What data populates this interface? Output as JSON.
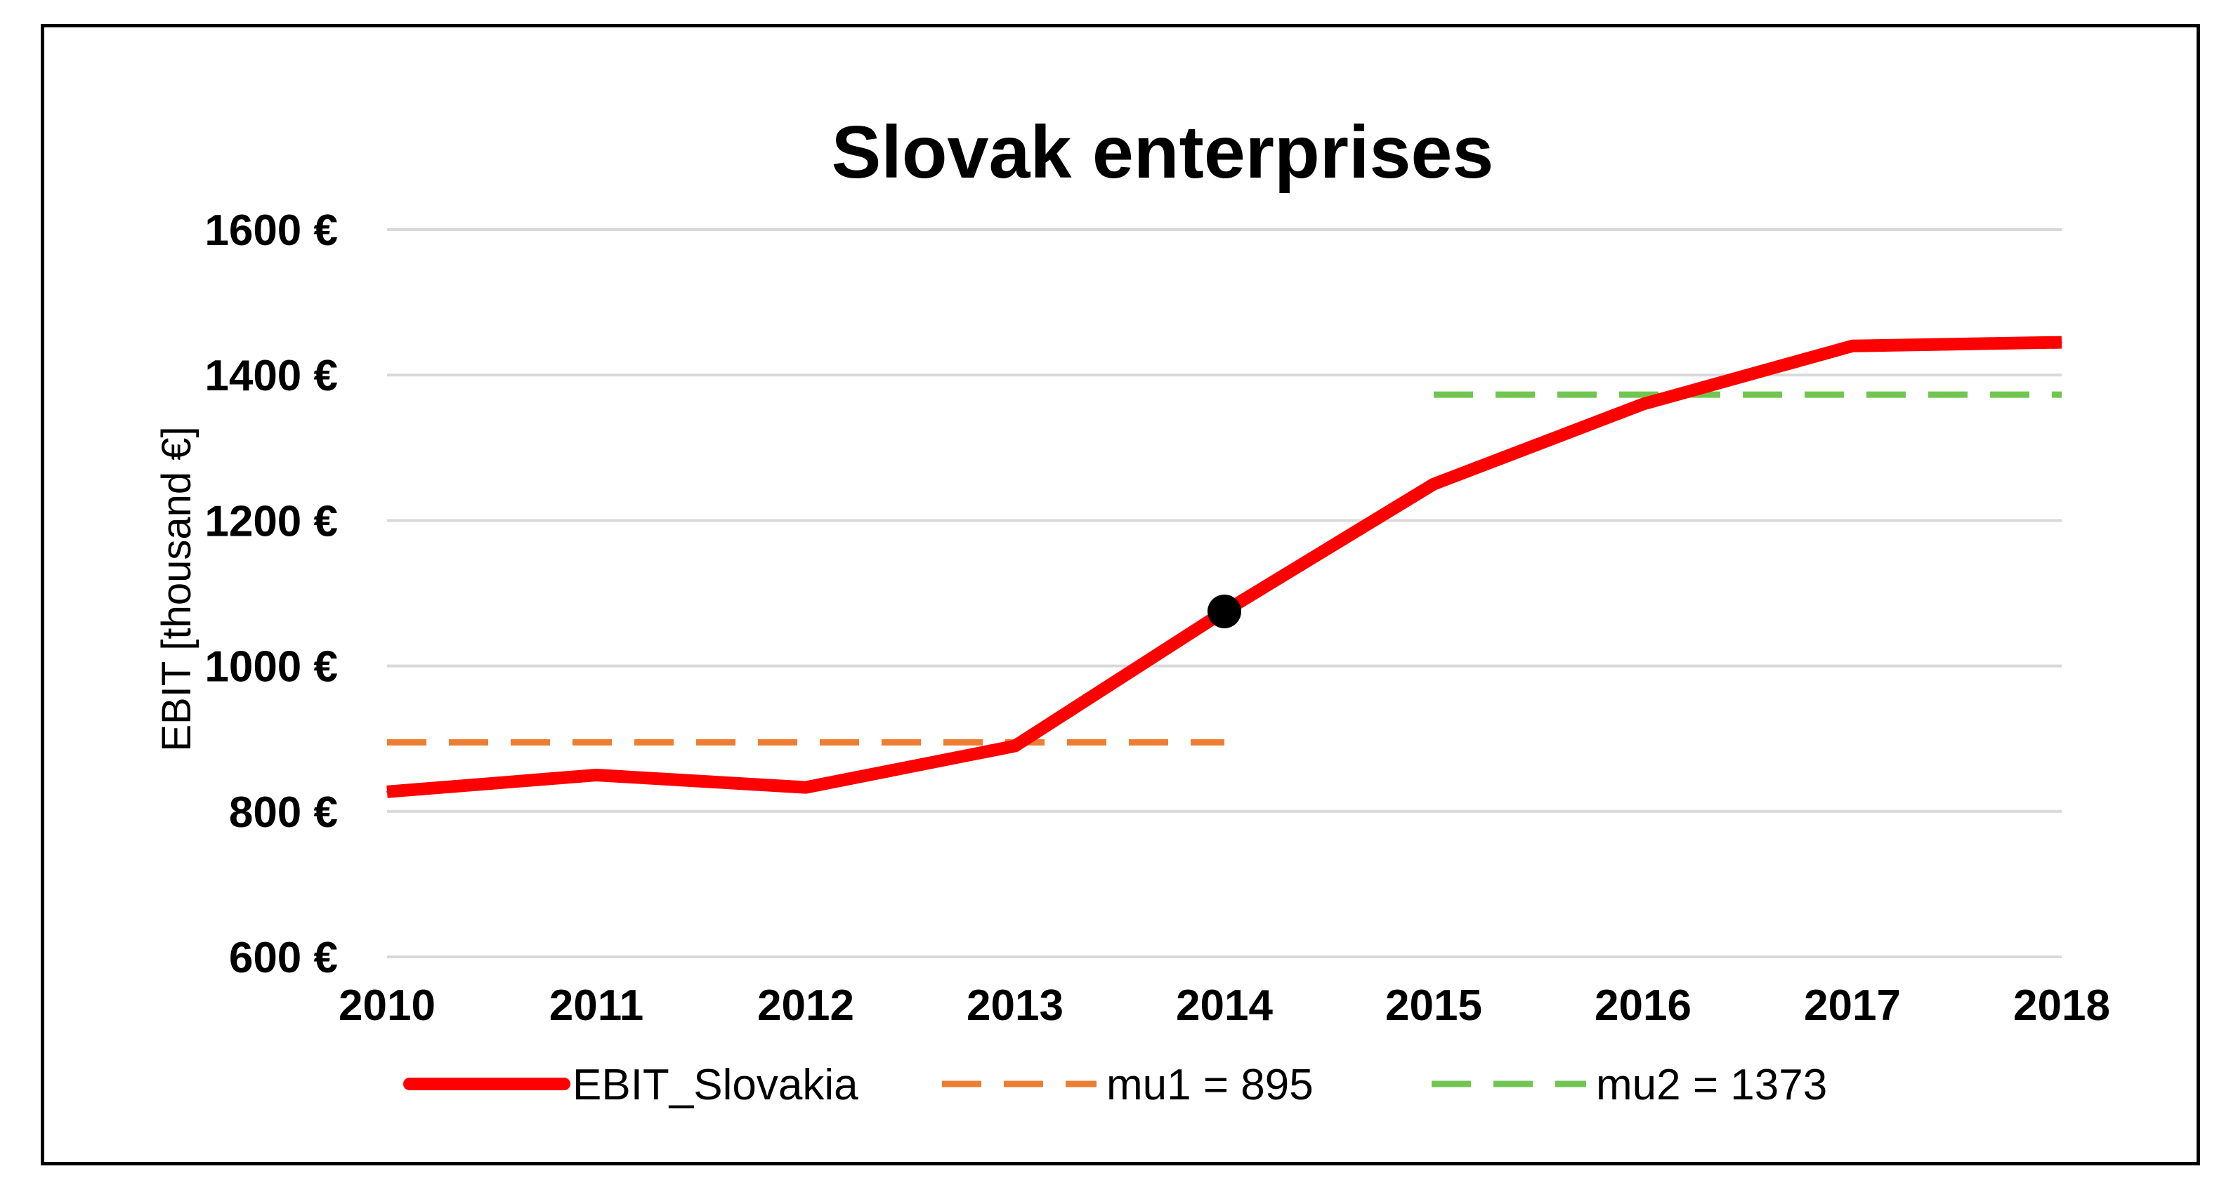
{
  "chart_data": {
    "type": "line",
    "title": "Slovak enterprises",
    "ylabel": "EBIT [thousand €]",
    "xlabel": "",
    "categories": [
      "2010",
      "2011",
      "2012",
      "2013",
      "2014",
      "2015",
      "2016",
      "2017",
      "2018"
    ],
    "ylim": [
      600,
      1600
    ],
    "yticks": [
      600,
      800,
      1000,
      1200,
      1400,
      1600
    ],
    "ytick_labels": [
      "600 €",
      "800 €",
      "1000 €",
      "1200 €",
      "1400 €",
      "1600 €"
    ],
    "grid": true,
    "legend_position": "bottom",
    "series": [
      {
        "name": "EBIT_Slovakia",
        "style": "solid",
        "color": "#ff0000",
        "values": [
          827,
          850,
          833,
          890,
          1075,
          1250,
          1360,
          1440,
          1445
        ]
      },
      {
        "name": "mu1 = 895",
        "style": "dashed",
        "color": "#ed7d31",
        "x_range": [
          "2010",
          "2014"
        ],
        "value": 895
      },
      {
        "name": "mu2 = 1373",
        "style": "dashed",
        "color": "#70c650",
        "x_range": [
          "2015",
          "2018"
        ],
        "value": 1373
      }
    ],
    "annotations": [
      {
        "type": "marker",
        "x": "2014",
        "y": 1075,
        "color": "#000000"
      }
    ]
  }
}
